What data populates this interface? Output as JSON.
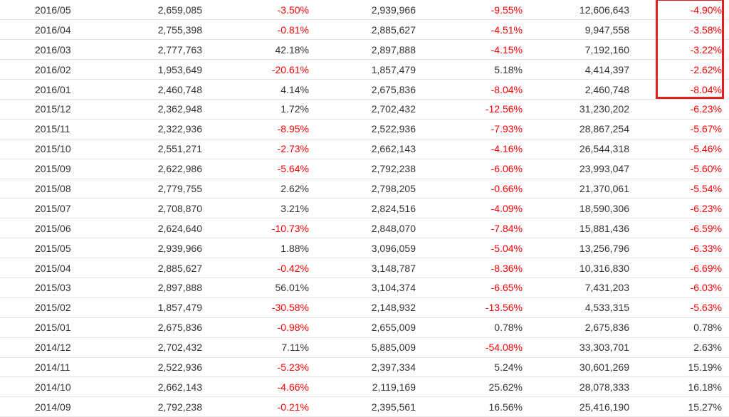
{
  "colors": {
    "negative": "#ff0000",
    "positive": "#333333",
    "highlight": "#e31f1f",
    "row_border": "#e3e3e3"
  },
  "table": {
    "rows": [
      {
        "period": "2016/05",
        "v1": "2,659,085",
        "p1": "-3.50%",
        "v2": "2,939,966",
        "p2": "-9.55%",
        "cum": "12,606,643",
        "p3": "-4.90%"
      },
      {
        "period": "2016/04",
        "v1": "2,755,398",
        "p1": "-0.81%",
        "v2": "2,885,627",
        "p2": "-4.51%",
        "cum": "9,947,558",
        "p3": "-3.58%"
      },
      {
        "period": "2016/03",
        "v1": "2,777,763",
        "p1": "42.18%",
        "v2": "2,897,888",
        "p2": "-4.15%",
        "cum": "7,192,160",
        "p3": "-3.22%"
      },
      {
        "period": "2016/02",
        "v1": "1,953,649",
        "p1": "-20.61%",
        "v2": "1,857,479",
        "p2": "5.18%",
        "cum": "4,414,397",
        "p3": "-2.62%"
      },
      {
        "period": "2016/01",
        "v1": "2,460,748",
        "p1": "4.14%",
        "v2": "2,675,836",
        "p2": "-8.04%",
        "cum": "2,460,748",
        "p3": "-8.04%"
      },
      {
        "period": "2015/12",
        "v1": "2,362,948",
        "p1": "1.72%",
        "v2": "2,702,432",
        "p2": "-12.56%",
        "cum": "31,230,202",
        "p3": "-6.23%"
      },
      {
        "period": "2015/11",
        "v1": "2,322,936",
        "p1": "-8.95%",
        "v2": "2,522,936",
        "p2": "-7.93%",
        "cum": "28,867,254",
        "p3": "-5.67%"
      },
      {
        "period": "2015/10",
        "v1": "2,551,271",
        "p1": "-2.73%",
        "v2": "2,662,143",
        "p2": "-4.16%",
        "cum": "26,544,318",
        "p3": "-5.46%"
      },
      {
        "period": "2015/09",
        "v1": "2,622,986",
        "p1": "-5.64%",
        "v2": "2,792,238",
        "p2": "-6.06%",
        "cum": "23,993,047",
        "p3": "-5.60%"
      },
      {
        "period": "2015/08",
        "v1": "2,779,755",
        "p1": "2.62%",
        "v2": "2,798,205",
        "p2": "-0.66%",
        "cum": "21,370,061",
        "p3": "-5.54%"
      },
      {
        "period": "2015/07",
        "v1": "2,708,870",
        "p1": "3.21%",
        "v2": "2,824,516",
        "p2": "-4.09%",
        "cum": "18,590,306",
        "p3": "-6.23%"
      },
      {
        "period": "2015/06",
        "v1": "2,624,640",
        "p1": "-10.73%",
        "v2": "2,848,070",
        "p2": "-7.84%",
        "cum": "15,881,436",
        "p3": "-6.59%"
      },
      {
        "period": "2015/05",
        "v1": "2,939,966",
        "p1": "1.88%",
        "v2": "3,096,059",
        "p2": "-5.04%",
        "cum": "13,256,796",
        "p3": "-6.33%"
      },
      {
        "period": "2015/04",
        "v1": "2,885,627",
        "p1": "-0.42%",
        "v2": "3,148,787",
        "p2": "-8.36%",
        "cum": "10,316,830",
        "p3": "-6.69%"
      },
      {
        "period": "2015/03",
        "v1": "2,897,888",
        "p1": "56.01%",
        "v2": "3,104,374",
        "p2": "-6.65%",
        "cum": "7,431,203",
        "p3": "-6.03%"
      },
      {
        "period": "2015/02",
        "v1": "1,857,479",
        "p1": "-30.58%",
        "v2": "2,148,932",
        "p2": "-13.56%",
        "cum": "4,533,315",
        "p3": "-5.63%"
      },
      {
        "period": "2015/01",
        "v1": "2,675,836",
        "p1": "-0.98%",
        "v2": "2,655,009",
        "p2": "0.78%",
        "cum": "2,675,836",
        "p3": "0.78%"
      },
      {
        "period": "2014/12",
        "v1": "2,702,432",
        "p1": "7.11%",
        "v2": "5,885,009",
        "p2": "-54.08%",
        "cum": "33,303,701",
        "p3": "2.63%"
      },
      {
        "period": "2014/11",
        "v1": "2,522,936",
        "p1": "-5.23%",
        "v2": "2,397,334",
        "p2": "5.24%",
        "cum": "30,601,269",
        "p3": "15.19%"
      },
      {
        "period": "2014/10",
        "v1": "2,662,143",
        "p1": "-4.66%",
        "v2": "2,119,169",
        "p2": "25.62%",
        "cum": "28,078,333",
        "p3": "16.18%"
      },
      {
        "period": "2014/09",
        "v1": "2,792,238",
        "p1": "-0.21%",
        "v2": "2,395,561",
        "p2": "16.56%",
        "cum": "25,416,190",
        "p3": "15.27%"
      }
    ]
  }
}
